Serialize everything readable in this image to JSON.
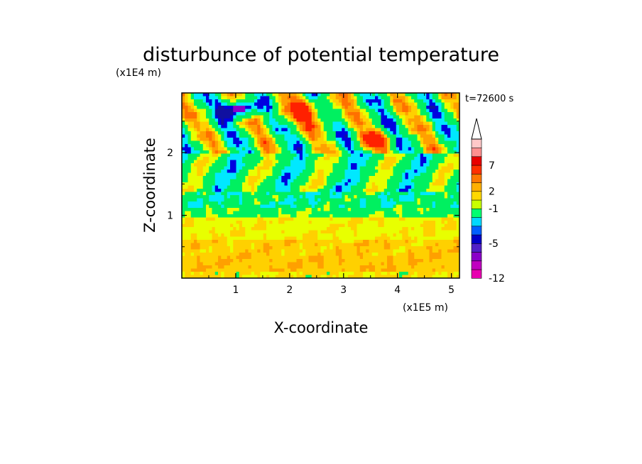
{
  "chart_data": {
    "type": "heatmap",
    "title": "disturbunce of potential temperature",
    "xlabel": "X-coordinate",
    "ylabel": "Z-coordinate",
    "x_units": "(x1E5 m)",
    "y_units": "(x1E4 m)",
    "annotation": "t=72600 s",
    "xlim": [
      0,
      5.15
    ],
    "ylim": [
      0,
      2.95
    ],
    "x_ticks": [
      {
        "value": 1,
        "label": "1"
      },
      {
        "value": 2,
        "label": "2"
      },
      {
        "value": 3,
        "label": "3"
      },
      {
        "value": 4,
        "label": "4"
      },
      {
        "value": 5,
        "label": "5"
      }
    ],
    "y_ticks": [
      {
        "value": 1,
        "label": "1"
      },
      {
        "value": 2,
        "label": "2"
      }
    ],
    "colorbar": {
      "labeled": [
        {
          "value": 7,
          "label": "7"
        },
        {
          "value": 2,
          "label": "2"
        },
        {
          "value": -1,
          "label": "-1"
        },
        {
          "value": -5,
          "label": "-5"
        },
        {
          "value": -12,
          "label": "-12"
        }
      ],
      "colors": [
        "#e800b0",
        "#c000c0",
        "#8a00c8",
        "#5020c8",
        "#0000c8",
        "#0060ff",
        "#00d8ff",
        "#00ff70",
        "#c8ff00",
        "#ffd800",
        "#ffb000",
        "#ff7800",
        "#ff3000",
        "#e80000",
        "#ff9090",
        "#ffc8c8"
      ],
      "extend": "max"
    },
    "field_colors": {
      "magenta": "#e800b0",
      "violet": "#8a00c8",
      "navy": "#1010a0",
      "blue": "#0000e0",
      "cyan": "#00e8ff",
      "green": "#00f060",
      "yellow": "#e8ff00",
      "gold": "#ffd000",
      "orange": "#ffa000",
      "dark_orange": "#ff7000",
      "red": "#ff2000"
    }
  }
}
